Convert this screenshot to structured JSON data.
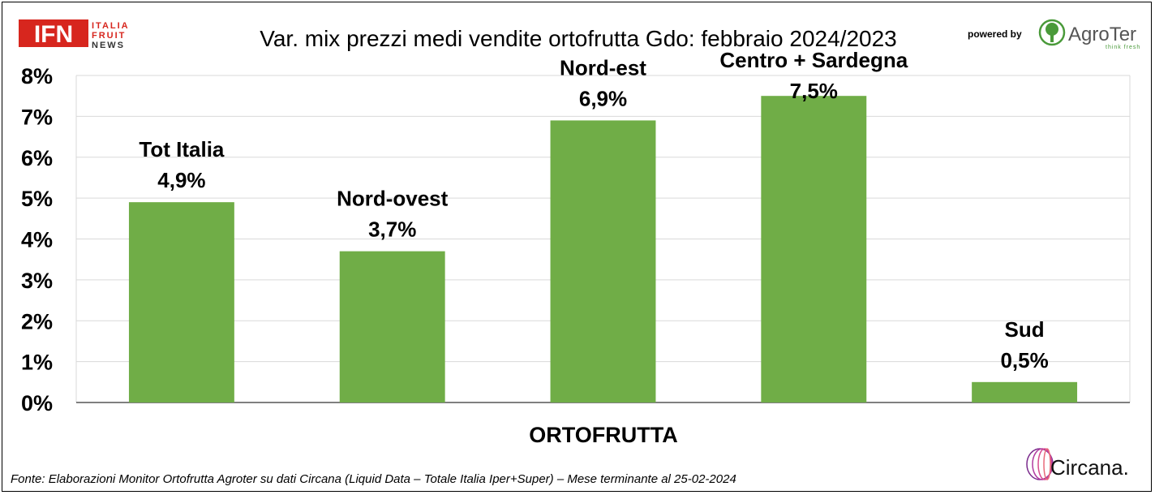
{
  "header": {
    "brand": {
      "main": "IFN",
      "line1": "ITALIA",
      "line2": "FRUIT",
      "line3": "NEWS"
    },
    "powered_by": "powered by",
    "partner": {
      "name": "AgroTer",
      "tagline": "think fresh"
    }
  },
  "footer": {
    "source": "Fonte: Elaborazioni Monitor Ortofrutta Agroter su dati Circana (Liquid Data – Totale Italia Iper+Super) – Mese terminante al 25-02-2024",
    "logo": "Circana."
  },
  "colors": {
    "bar": "#70ad47",
    "grid": "#d9d9d9",
    "axis": "#000000",
    "ifn_red": "#d7261e",
    "circana_purple": "#7a2a8c"
  },
  "icons": {
    "partner_logo": "tree-icon",
    "circana_logo": "spiral-icon"
  },
  "chart_data": {
    "type": "bar",
    "title": "Var. mix prezzi medi vendite ortofrutta Gdo: febbraio 2024/2023",
    "xlabel": "ORTOFRUTTA",
    "ylabel": "",
    "categories": [
      "Tot Italia",
      "Nord-ovest",
      "Nord-est",
      "Centro + Sardegna",
      "Sud"
    ],
    "values": [
      4.9,
      3.7,
      6.9,
      7.5,
      0.5
    ],
    "value_labels": [
      "4,9%",
      "3,7%",
      "6,9%",
      "7,5%",
      "0,5%"
    ],
    "ylim": [
      0,
      8
    ],
    "yticks": [
      0,
      1,
      2,
      3,
      4,
      5,
      6,
      7,
      8
    ],
    "ytick_labels": [
      "0%",
      "1%",
      "2%",
      "3%",
      "4%",
      "5%",
      "6%",
      "7%",
      "8%"
    ],
    "grid": true,
    "legend": "none"
  }
}
